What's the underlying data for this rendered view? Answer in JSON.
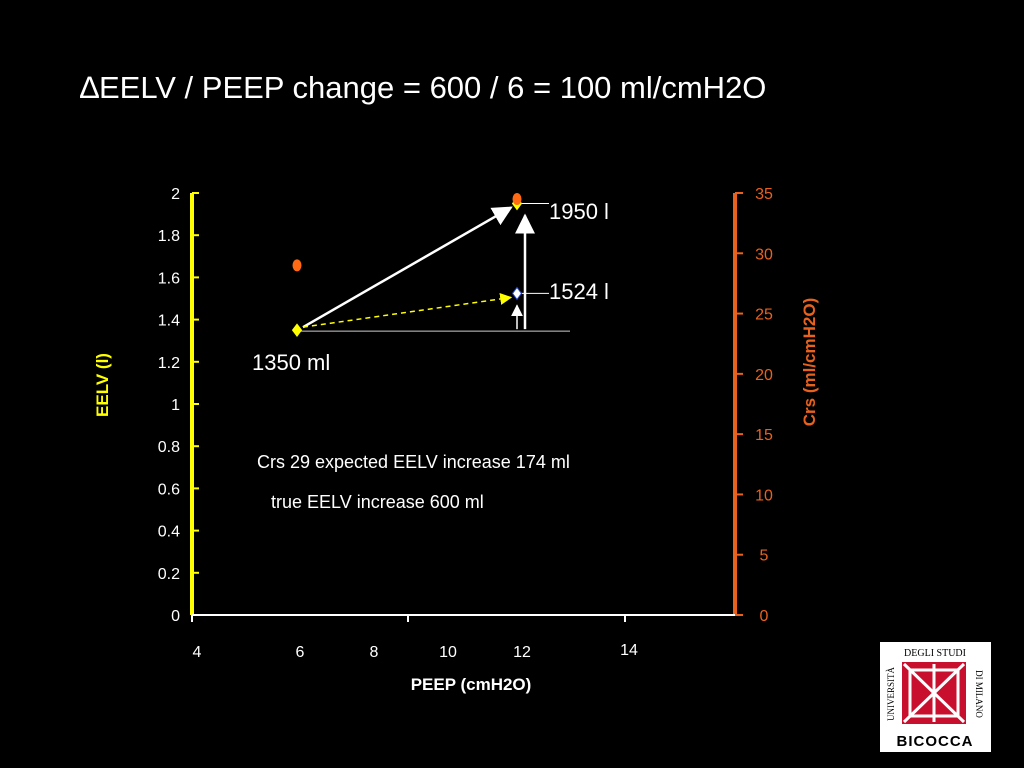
{
  "slide": {
    "title": "∆EELV / PEEP change = 600 / 6 = 100 ml/cmH2O"
  },
  "colors": {
    "background": "#000000",
    "left_axis": "#ffff00",
    "right_axis": "#e8621e",
    "eelv_marker": "#ffff00",
    "crs_marker": "#ff6a13",
    "measured_arrow": "#ffffff",
    "expected_arrow": "#ffff00"
  },
  "annotations": {
    "start_label": "1350 ml",
    "high_label": "1950 l",
    "expected_label": "1524 l",
    "note_expected": "Crs 29  expected EELV increase 174 ml",
    "note_true": "true EELV increase 600 ml"
  },
  "logo": {
    "top_text": "DEGLI STUDI",
    "left_text": "UNIVERSITÀ",
    "right_text": "DI MILANO",
    "bottom_text": "BICOCCA",
    "icon": "university-bicocca-logo"
  },
  "chart_data": {
    "type": "scatter",
    "xlabel": "PEEP (cmH2O)",
    "ylabel": "EELV (l)",
    "y2label": "Crs (ml/cmH2O)",
    "x_ticks": [
      "4",
      "6",
      "8",
      "10",
      "12",
      "14"
    ],
    "y_ticks": [
      "0",
      "0.2",
      "0.4",
      "0.6",
      "0.8",
      "1",
      "1.2",
      "1.4",
      "1.6",
      "1.8",
      "2"
    ],
    "y2_ticks": [
      "0",
      "5",
      "10",
      "15",
      "20",
      "25",
      "30",
      "35"
    ],
    "ylim": [
      0,
      2
    ],
    "y2lim": [
      0,
      35
    ],
    "grid": false,
    "series": [
      {
        "name": "EELV",
        "axis": "left",
        "marker": "diamond",
        "points": [
          {
            "x": 6,
            "y": 1.35
          },
          {
            "x": 12,
            "y": 1.95
          }
        ]
      },
      {
        "name": "Expected EELV",
        "axis": "left",
        "marker": "diamond",
        "points": [
          {
            "x": 12,
            "y": 1.524
          }
        ]
      },
      {
        "name": "Crs",
        "axis": "right",
        "marker": "circle",
        "points": [
          {
            "x": 6,
            "y": 29
          },
          {
            "x": 12,
            "y": 34.5
          }
        ]
      }
    ],
    "arrows": [
      {
        "from": {
          "x": 6,
          "y": 1.35
        },
        "to": {
          "x": 12,
          "y": 1.95
        },
        "style": "solid",
        "color": "#ffffff"
      },
      {
        "from": {
          "x": 6,
          "y": 1.35
        },
        "to": {
          "x": 12,
          "y": 1.524
        },
        "style": "dashed",
        "color": "#ffff00"
      }
    ]
  }
}
